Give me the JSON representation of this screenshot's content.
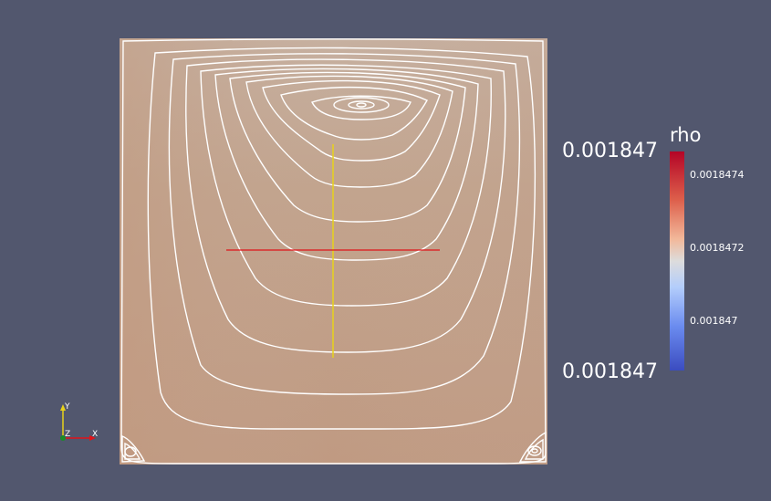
{
  "colorbar": {
    "title": "rho",
    "max_label": "0.001847",
    "min_label": "0.001847",
    "ticks": [
      "0.0018474",
      "0.0018472",
      "0.001847"
    ],
    "colors": [
      "#b40426",
      "#dddcdc",
      "#3b4cc0"
    ]
  },
  "orientation_axes": {
    "x": "X",
    "y": "Y",
    "z": "Z"
  },
  "colors": {
    "background": "#52576e",
    "domain_fill": "#c4a088",
    "streamline": "#ffffff",
    "vertical_probe_line": "#e8d21a",
    "horizontal_probe_line": "#e0141a"
  }
}
